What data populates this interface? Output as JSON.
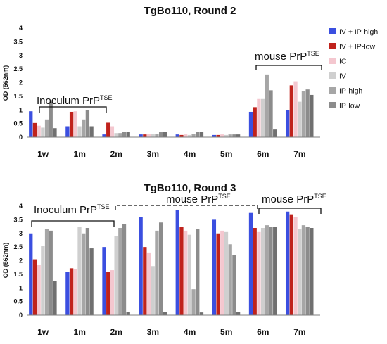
{
  "chart_data": [
    {
      "type": "bar",
      "title": "TgBo110, Round 2",
      "ylabel": "OD (562nm)",
      "ylim": [
        0,
        4
      ],
      "yticks": [
        0,
        0.5,
        1,
        1.5,
        2,
        2.5,
        3,
        3.5,
        4
      ],
      "categories": [
        "1w",
        "1m",
        "2m",
        "3m",
        "4m",
        "5m",
        "6m",
        "7m"
      ],
      "legend_position": "right",
      "series": [
        {
          "name": "IV + IP-high",
          "color": "#3b4fe0",
          "values": [
            0.95,
            0.4,
            0.1,
            0.1,
            0.1,
            0.08,
            0.93,
            1.0
          ]
        },
        {
          "name": "IV + IP-low",
          "color": "#c0221c",
          "values": [
            0.52,
            0.93,
            0.53,
            0.1,
            0.08,
            0.08,
            1.1,
            1.9
          ]
        },
        {
          "name": "IC",
          "color": "#f4c7cf",
          "values": [
            0.42,
            0.95,
            0.4,
            0.12,
            0.1,
            0.1,
            1.4,
            2.05
          ]
        },
        {
          "name": "IV",
          "color": "#cfcfcf",
          "values": [
            0.35,
            0.4,
            0.15,
            0.12,
            0.08,
            0.08,
            1.4,
            1.3
          ]
        },
        {
          "name": "IP-high",
          "color": "#a6a6a6",
          "values": [
            0.65,
            0.65,
            0.15,
            0.12,
            0.12,
            0.1,
            2.3,
            1.7
          ]
        },
        {
          "name": "IP-low",
          "color": "#8c8c8c",
          "values": [
            1.3,
            1.0,
            0.2,
            0.18,
            0.2,
            0.1,
            1.72,
            1.75
          ]
        },
        {
          "name": "",
          "color": "#707070",
          "values": [
            0.33,
            0.4,
            0.2,
            0.2,
            0.2,
            0.1,
            0.28,
            1.55
          ]
        }
      ],
      "annotations": [
        {
          "text": "Inoculum PrP",
          "superscript": "TSE"
        },
        {
          "text": "mouse PrP",
          "superscript": "TSE"
        }
      ]
    },
    {
      "type": "bar",
      "title": "TgBo110, Round 3",
      "ylabel": "OD (562nm)",
      "ylim": [
        0,
        4
      ],
      "yticks": [
        0,
        0.5,
        1,
        1.5,
        2,
        2.5,
        3,
        3.5,
        4
      ],
      "categories": [
        "1w",
        "1m",
        "2m",
        "3m",
        "4m",
        "5m",
        "6m",
        "7m"
      ],
      "series": [
        {
          "name": "IV + IP-high",
          "color": "#3b4fe0",
          "values": [
            3.0,
            1.6,
            2.5,
            3.6,
            3.85,
            3.5,
            3.75,
            3.8
          ]
        },
        {
          "name": "IV + IP-low",
          "color": "#c0221c",
          "values": [
            2.05,
            1.72,
            1.6,
            2.5,
            3.25,
            3.0,
            3.2,
            3.7
          ]
        },
        {
          "name": "IC",
          "color": "#f4c7cf",
          "values": [
            1.85,
            1.7,
            1.65,
            2.3,
            3.1,
            3.1,
            3.05,
            3.6
          ]
        },
        {
          "name": "IV",
          "color": "#cfcfcf",
          "values": [
            2.55,
            3.25,
            2.9,
            1.8,
            2.95,
            3.05,
            3.2,
            3.15
          ]
        },
        {
          "name": "IP-high",
          "color": "#a6a6a6",
          "values": [
            3.15,
            3.0,
            3.2,
            3.1,
            0.95,
            2.6,
            3.3,
            3.3
          ]
        },
        {
          "name": "IP-low",
          "color": "#8c8c8c",
          "values": [
            3.1,
            3.2,
            3.35,
            3.4,
            3.15,
            2.2,
            3.25,
            3.25
          ]
        },
        {
          "name": "",
          "color": "#707070",
          "values": [
            1.25,
            2.45,
            0.12,
            0.12,
            0.1,
            0.12,
            3.25,
            3.2
          ]
        }
      ],
      "annotations": [
        {
          "text": "Inoculum PrP",
          "superscript": "TSE"
        },
        {
          "text": "mouse PrP",
          "superscript": "TSE"
        },
        {
          "text": "mouse PrP",
          "superscript": "TSE"
        }
      ]
    }
  ]
}
